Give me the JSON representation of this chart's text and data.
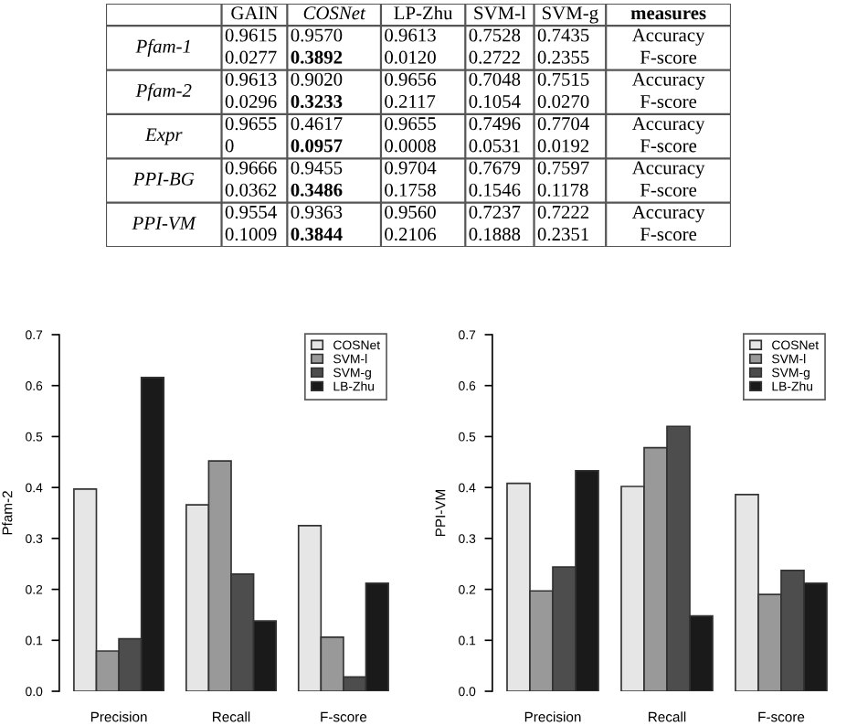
{
  "chart_data": [
    {
      "type": "other",
      "categories": [
        null,
        "GAIN",
        "COSNet",
        "LP-Zhu",
        "SVM-l",
        "SVM-g",
        "measures"
      ],
      "y_categories": [
        "Pfam-1",
        "Pfam-2",
        "Expr",
        "PPI-BG",
        "PPI-VM"
      ],
      "annotations": [
        "0.9615",
        "0.9570",
        "0.9613",
        "0.7528",
        "0.7435",
        "Accuracy",
        "0.0277",
        "0.3892",
        "0.0120",
        "0.2722",
        "0.2355",
        "F-score",
        "0.9613",
        "0.9020",
        "0.9656",
        "0.7048",
        "0.7515",
        "Accuracy",
        "0.0296",
        "0.3233",
        "0.2117",
        "0.1054",
        "0.0270",
        "F-score",
        "0.9655",
        "0.4617",
        "0.9655",
        "0.7496",
        "0.7704",
        "Accuracy",
        "0",
        "0.0957",
        "0.0008",
        "0.0531",
        "0.0192",
        "F-score",
        "0.9666",
        "0.9455",
        "0.9704",
        "0.7679",
        "0.7597",
        "Accuracy",
        "0.0362",
        "0.3486",
        "0.1758",
        "0.1546",
        "0.1178",
        "F-score",
        "0.9554",
        "0.9363",
        "0.9560",
        "0.7237",
        "0.7222",
        "Accuracy",
        "0.1009",
        "0.3844",
        "0.2106",
        "0.1888",
        "0.2351",
        "F-score"
      ]
    },
    {
      "type": "bar",
      "ylabel": "Pfam-2",
      "categories": [
        "Precision",
        "Recall",
        "F-score"
      ],
      "ylim": [
        0,
        0.7
      ],
      "yticks": [
        {
          "value": 0,
          "label": "0.0"
        },
        0.1,
        0.2,
        0.3,
        0.4,
        0.5,
        0.6,
        0.7
      ],
      "legend": "top right",
      "series": [
        {
          "name": "COSNet",
          "color": "#e6e6e6",
          "values": [
            0.397,
            0.366,
            0.325
          ]
        },
        {
          "name": "SVM-l",
          "color": "#999999",
          "values": [
            0.079,
            0.452,
            0.106
          ]
        },
        {
          "name": "SVM-g",
          "color": "#4d4d4d",
          "values": [
            0.103,
            0.23,
            0.028
          ]
        },
        {
          "name": "LB-Zhu",
          "color": "#1a1a1a",
          "values": [
            0.616,
            0.138,
            0.212
          ]
        }
      ]
    },
    {
      "type": "bar",
      "ylabel": "PPI-VM",
      "categories": [
        "Precision",
        "Recall",
        "F-score"
      ],
      "ylim": [
        0,
        0.7
      ],
      "yticks": [
        {
          "value": 0,
          "label": "0.0"
        },
        0.1,
        0.2,
        0.3,
        0.4,
        0.5,
        0.6,
        0.7
      ],
      "legend": "top right",
      "series": [
        {
          "name": "COSNet",
          "color": "#e6e6e6",
          "values": [
            0.408,
            0.402,
            0.386
          ]
        },
        {
          "name": "SVM-l",
          "color": "#999999",
          "values": [
            0.197,
            0.478,
            0.19
          ]
        },
        {
          "name": "SVM-g",
          "color": "#4d4d4d",
          "values": [
            0.244,
            0.52,
            0.237
          ]
        },
        {
          "name": "LB-Zhu",
          "color": "#1a1a1a",
          "values": [
            0.433,
            0.148,
            0.212
          ]
        }
      ]
    }
  ]
}
